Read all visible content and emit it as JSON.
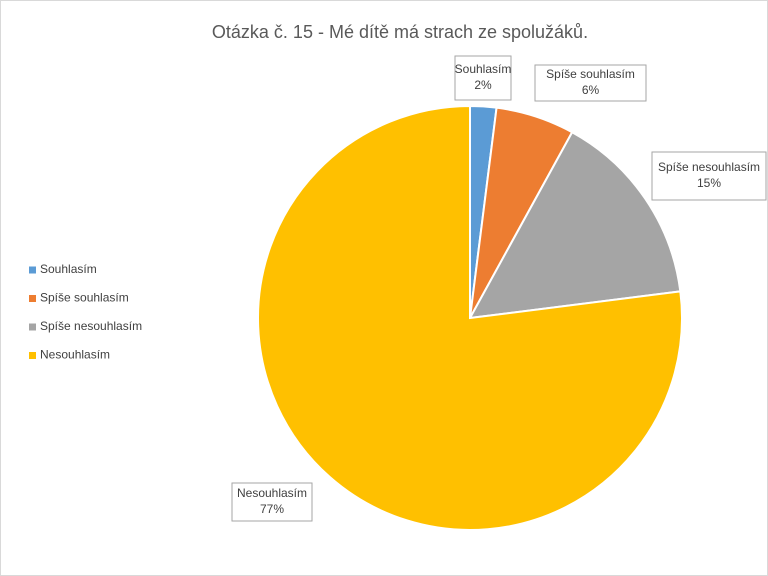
{
  "chart_data": {
    "type": "pie",
    "title": "Otázka č. 15 - Mé dítě má strach ze spolužáků.",
    "categories": [
      "Souhlasím",
      "Spíše souhlasím",
      "Spíše nesouhlasím",
      "Nesouhlasím"
    ],
    "values": [
      2,
      6,
      15,
      77
    ],
    "value_labels": [
      "2%",
      "6%",
      "15%",
      "77%"
    ],
    "colors": [
      "#5b9bd5",
      "#ed7d31",
      "#a5a5a5",
      "#ffc000"
    ],
    "legend": "left"
  }
}
